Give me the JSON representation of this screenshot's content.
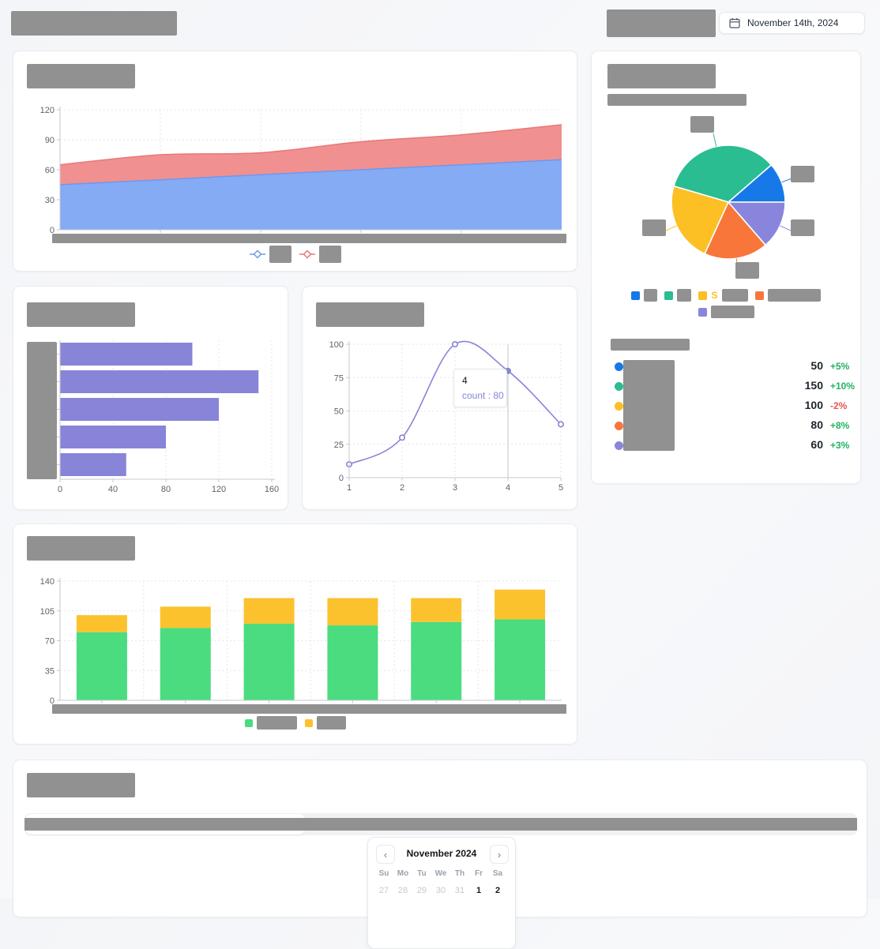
{
  "header": {
    "date_button": {
      "label": "November 14th, 2024",
      "icon": "calendar-icon"
    }
  },
  "colors": {
    "redaction": "#919191",
    "positive": "#23b262",
    "negative": "#ef5350",
    "axis_text": "#5c636b",
    "grid": "#e3e6eb"
  },
  "chart_data": [
    {
      "id": "area-chart",
      "type": "area",
      "stacked": true,
      "x": [
        1,
        2,
        3,
        4,
        5,
        6
      ],
      "series": [
        {
          "name": "series-blue",
          "color": "#85abf5",
          "stroke": "#6d98ef",
          "values": [
            45,
            50,
            55,
            60,
            65,
            70
          ]
        },
        {
          "name": "series-red",
          "color": "#f19090",
          "stroke": "#e87878",
          "values": [
            20,
            25,
            22,
            28,
            30,
            35
          ]
        }
      ],
      "ylim": [
        0,
        120
      ],
      "yticks": [
        0,
        30,
        60,
        90,
        120
      ],
      "x_axis_redacted": true,
      "legend_redacted": true,
      "grid": true
    },
    {
      "id": "horizontal-bar-chart",
      "type": "bar",
      "orientation": "horizontal",
      "values": [
        100,
        150,
        120,
        80,
        50
      ],
      "color": "#8884d8",
      "xlim": [
        0,
        160
      ],
      "xticks": [
        0,
        40,
        80,
        120,
        160
      ],
      "y_axis_redacted": true,
      "grid": true
    },
    {
      "id": "line-chart",
      "type": "line",
      "x": [
        1,
        2,
        3,
        4,
        5
      ],
      "values": [
        10,
        30,
        100,
        80,
        40
      ],
      "color": "#8884d8",
      "ylim": [
        0,
        100
      ],
      "yticks": [
        0,
        25,
        50,
        75,
        100
      ],
      "xticks": [
        1,
        2,
        3,
        4,
        5
      ],
      "active_point": {
        "x": 4,
        "value": 80
      },
      "tooltip": {
        "title": "4",
        "text": "count : 80"
      },
      "grid": true
    },
    {
      "id": "pie-chart",
      "type": "pie",
      "values": [
        50,
        150,
        100,
        80,
        60
      ],
      "colors": [
        "#1779e8",
        "#2bbd92",
        "#fcbf24",
        "#f8763a",
        "#8a85dc"
      ],
      "labels_redacted": true,
      "legend": {
        "rows": [
          [
            {
              "color": "#1779e8",
              "w": 17,
              "visible_text": ""
            },
            {
              "color": "#2bbd92",
              "w": 18,
              "visible_text": ""
            },
            {
              "color": "#fcbf24",
              "w": 33,
              "visible_text": "S"
            },
            {
              "color": "#f8763a",
              "w": 67,
              "visible_text": ""
            }
          ],
          [
            {
              "color": "#8a85dc",
              "w": 55,
              "visible_text": ""
            }
          ]
        ]
      }
    },
    {
      "id": "stacked-bar-chart",
      "type": "bar",
      "stacked": true,
      "categories_redacted": true,
      "series": [
        {
          "name": "series-green",
          "color": "#4adc7f",
          "values": [
            80,
            85,
            90,
            88,
            92,
            95
          ]
        },
        {
          "name": "series-yellow",
          "color": "#fcc22d",
          "values": [
            20,
            25,
            30,
            32,
            28,
            35
          ]
        }
      ],
      "ylim": [
        0,
        140
      ],
      "yticks": [
        0,
        35,
        70,
        105,
        140
      ],
      "x_axis_redacted": true,
      "legend_redacted": true,
      "grid": true
    }
  ],
  "stats": {
    "rows": [
      {
        "color": "#1779e8",
        "value": "50",
        "change": "+5%",
        "direction": "up"
      },
      {
        "color": "#2bbd92",
        "value": "150",
        "change": "+10%",
        "direction": "up"
      },
      {
        "color": "#fcbf24",
        "value": "100",
        "change": "-2%",
        "direction": "down"
      },
      {
        "color": "#f8763a",
        "value": "80",
        "change": "+8%",
        "direction": "up"
      },
      {
        "color": "#8a85dc",
        "value": "60",
        "change": "+3%",
        "direction": "up"
      }
    ]
  },
  "calendar": {
    "month_label": "November 2024",
    "prev_label": "‹",
    "next_label": "›",
    "weekdays": [
      "Su",
      "Mo",
      "Tu",
      "We",
      "Th",
      "Fr",
      "Sa"
    ],
    "days": [
      {
        "label": "27",
        "muted": true
      },
      {
        "label": "28",
        "muted": true
      },
      {
        "label": "29",
        "muted": true
      },
      {
        "label": "30",
        "muted": true
      },
      {
        "label": "31",
        "muted": true
      },
      {
        "label": "1",
        "muted": false
      },
      {
        "label": "2",
        "muted": false
      }
    ]
  }
}
